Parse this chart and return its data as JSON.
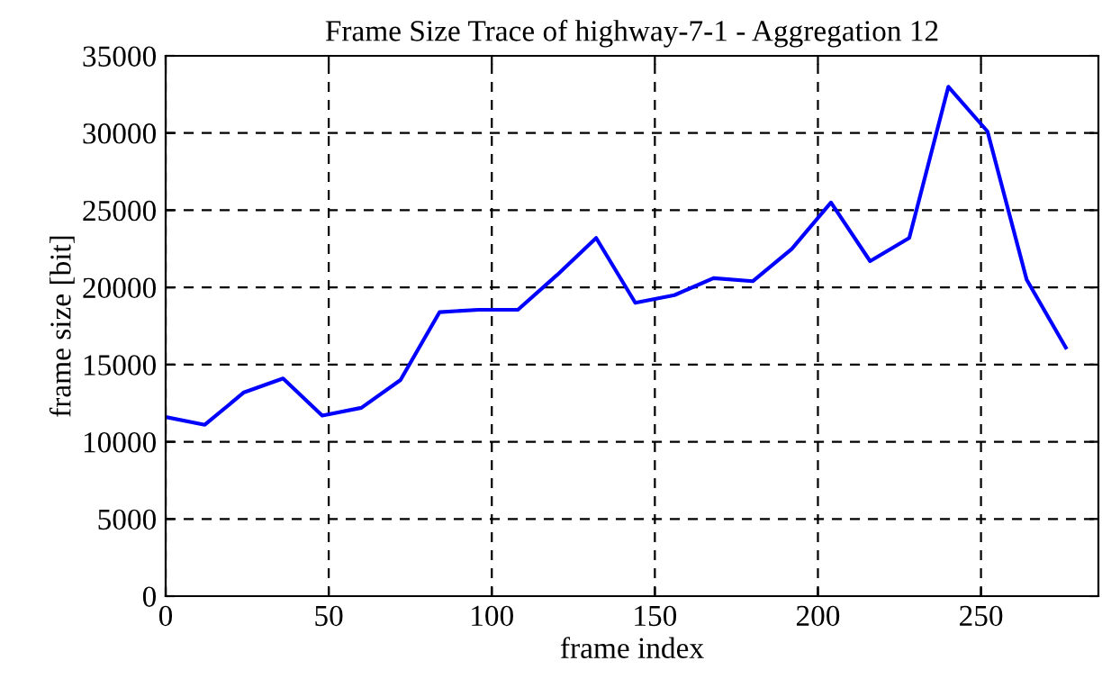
{
  "chart_data": {
    "type": "line",
    "title": "Frame Size Trace of highway-7-1 - Aggregation 12",
    "xlabel": "frame index",
    "ylabel": "frame size [bit]",
    "x": [
      0,
      12,
      24,
      36,
      48,
      60,
      72,
      84,
      96,
      108,
      120,
      132,
      144,
      156,
      168,
      180,
      192,
      204,
      216,
      228,
      240,
      252,
      264,
      276
    ],
    "series": [
      {
        "color": "#0000ff",
        "values": [
          11600,
          11100,
          13200,
          14100,
          11700,
          12200,
          14000,
          18400,
          18550,
          18550,
          20800,
          23200,
          19000,
          19500,
          20600,
          20400,
          22500,
          25500,
          21700,
          23200,
          33000,
          30100,
          20500,
          16100
        ]
      }
    ],
    "xlim": [
      0,
      286
    ],
    "xticks": [
      0,
      50,
      100,
      150,
      200,
      250
    ],
    "ylim": [
      0,
      35000
    ],
    "yticks": [
      0,
      5000,
      10000,
      15000,
      20000,
      25000,
      30000,
      35000
    ],
    "grid": true,
    "line_style": "solid",
    "marker": "none",
    "legend": false
  }
}
